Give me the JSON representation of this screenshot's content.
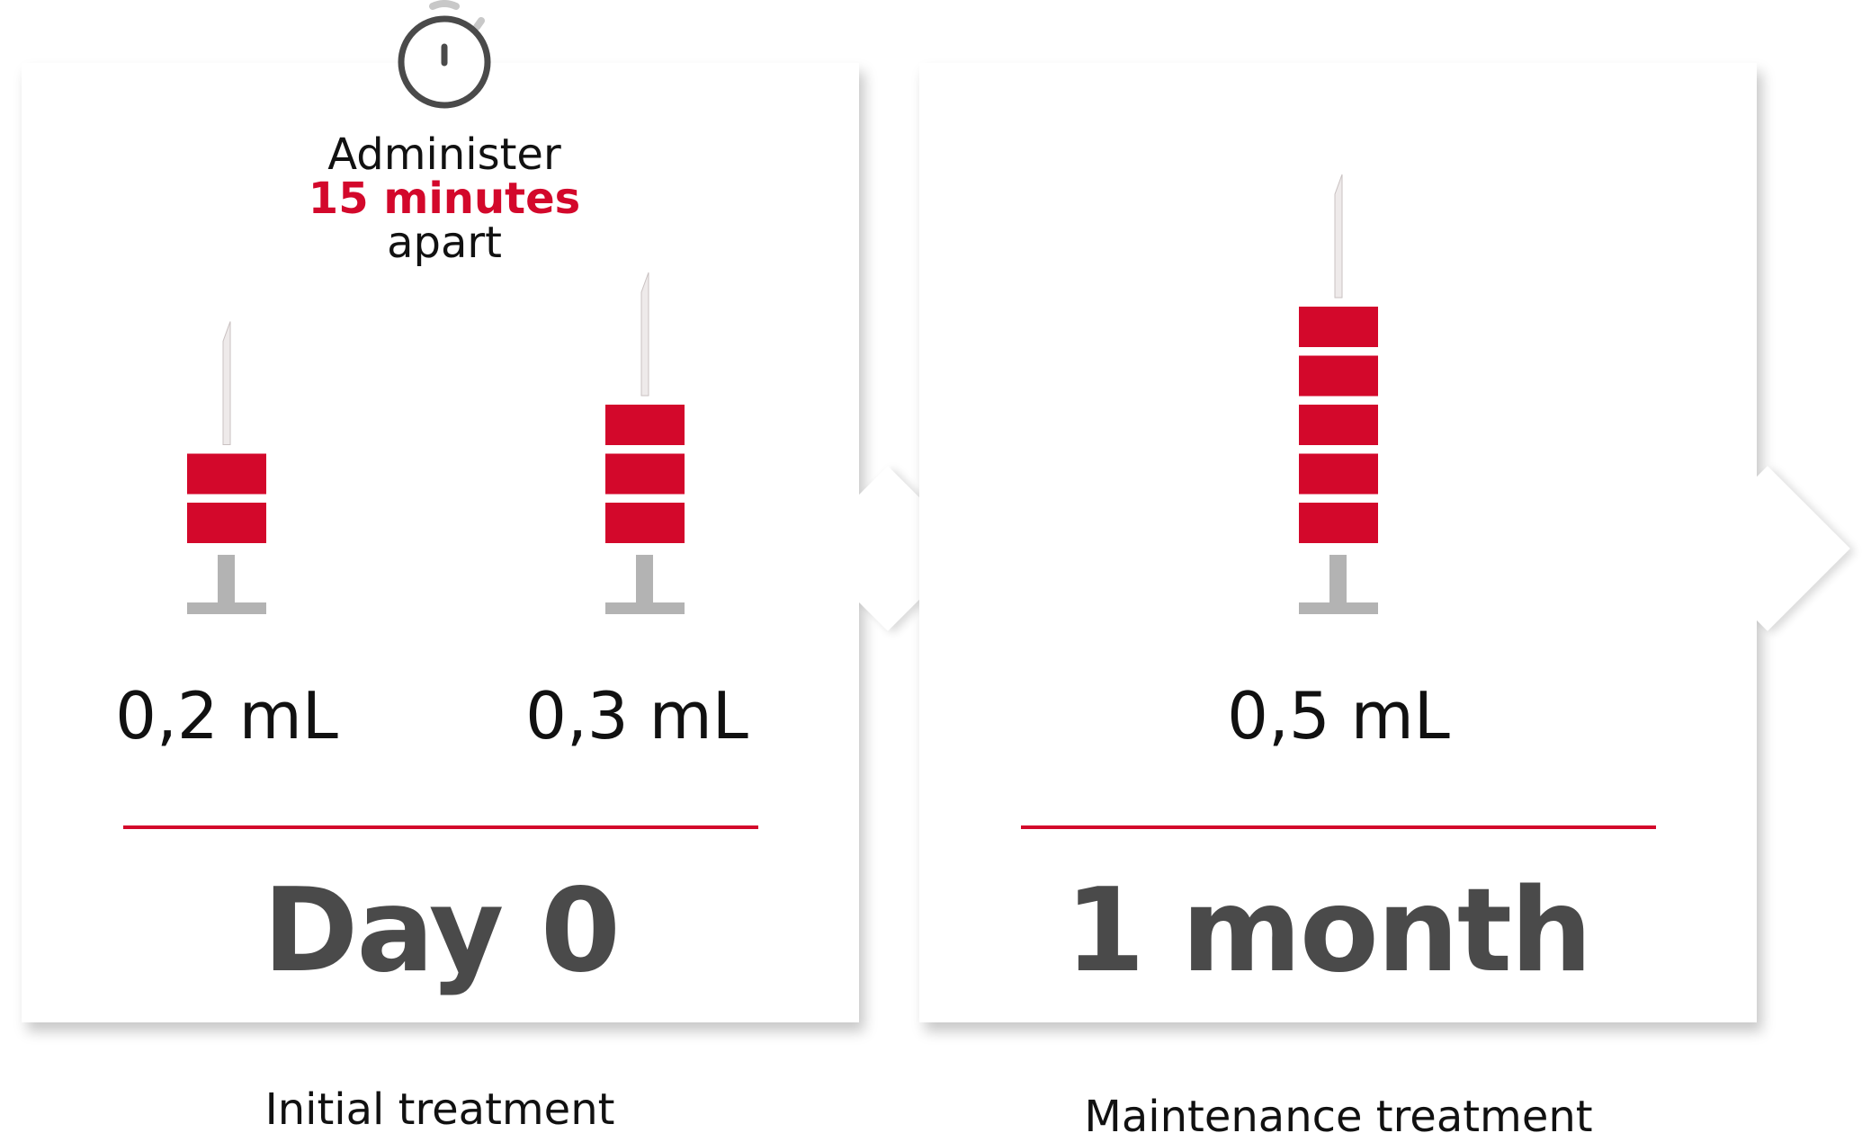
{
  "colors": {
    "accent": "#d3082b",
    "plunger": "#b3b3b3",
    "text_dark": "#4a4a4a"
  },
  "stopwatch": {
    "icon": "stopwatch-icon"
  },
  "administer": {
    "line1": "Administer",
    "line2": "15 minutes",
    "line3": "apart"
  },
  "initial": {
    "syringes": [
      {
        "dose": "0,2 mL",
        "blocks": 2
      },
      {
        "dose": "0,3 mL",
        "blocks": 3
      }
    ],
    "title": "Day 0",
    "caption": "Initial treatment"
  },
  "maintenance": {
    "syringes": [
      {
        "dose": "0,5 mL",
        "blocks": 5
      }
    ],
    "title": "1 month",
    "caption": "Maintenance treatment"
  }
}
